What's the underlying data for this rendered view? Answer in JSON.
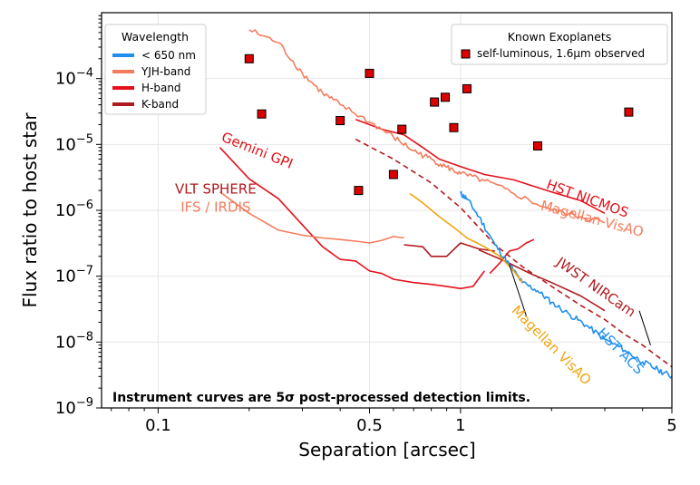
{
  "chart_data": {
    "type": "line",
    "xscale": "log",
    "yscale": "log",
    "xlim": [
      0.065,
      5
    ],
    "ylim": [
      1e-09,
      0.001
    ],
    "xlabel": "Separation [arcsec]",
    "ylabel": "Flux ratio to host star",
    "xticks": [
      {
        "value": 0.1,
        "label": "0.1"
      },
      {
        "value": 0.5,
        "label": "0.5"
      },
      {
        "value": 1,
        "label": "1"
      },
      {
        "value": 5,
        "label": "5"
      }
    ],
    "yticks": [
      {
        "value": 1e-09,
        "base": "10",
        "exp": "−9"
      },
      {
        "value": 1e-08,
        "base": "10",
        "exp": "−8"
      },
      {
        "value": 1e-07,
        "base": "10",
        "exp": "−7"
      },
      {
        "value": 1e-06,
        "base": "10",
        "exp": "−6"
      },
      {
        "value": 1e-05,
        "base": "10",
        "exp": "−5"
      },
      {
        "value": 0.0001,
        "base": "10",
        "exp": "−4"
      }
    ],
    "colors": {
      "blue": "#1e8fef",
      "salmon": "#f47c5c",
      "red": "#e4111b",
      "darkred": "#b0191f",
      "orange": "#f2a30f",
      "marker": "#dd0000"
    },
    "legend_wavelength": {
      "title": "Wavelength",
      "items": [
        {
          "label": "< 650 nm",
          "color": "#1e8fef"
        },
        {
          "label": "YJH-band",
          "color": "#f47c5c"
        },
        {
          "label": "H-band",
          "color": "#e4111b"
        },
        {
          "label": "K-band",
          "color": "#b0191f"
        }
      ]
    },
    "legend_planets": {
      "title": "Known Exoplanets",
      "label": "self-luminous, 1.6μm observed"
    },
    "footnote": "Instrument curves are 5σ post-processed detection limits.",
    "series": [
      {
        "name": "Gemini GPI",
        "color": "#e4111b",
        "dashed": false,
        "noisy": false,
        "x": [
          0.16,
          0.2,
          0.25,
          0.3,
          0.35,
          0.4,
          0.45,
          0.5,
          0.55,
          0.6,
          0.7,
          0.8,
          0.9,
          1.0,
          1.1,
          1.2
        ],
        "y": [
          9e-06,
          3e-06,
          1.5e-06,
          6e-07,
          2.8e-07,
          1.8e-07,
          1.7e-07,
          1.2e-07,
          1.1e-07,
          9e-08,
          8e-08,
          7.5e-08,
          7e-08,
          6.5e-08,
          7e-08,
          1.2e-07
        ]
      },
      {
        "name": "Gemini GPI K",
        "color": "#e4111b",
        "dashed": false,
        "noisy": false,
        "x": [
          1.25,
          1.35,
          1.45,
          1.55,
          1.65,
          1.75
        ],
        "y": [
          1.1e-07,
          1.6e-07,
          2.4e-07,
          2.6e-07,
          3.2e-07,
          3.6e-07
        ]
      },
      {
        "name": "VLT SPHERE IFS",
        "color": "#f47c5c",
        "dashed": false,
        "noisy": false,
        "x": [
          0.16,
          0.2,
          0.25,
          0.3,
          0.35,
          0.4,
          0.45,
          0.5,
          0.55,
          0.6,
          0.65
        ],
        "y": [
          1.9e-06,
          9e-07,
          5e-07,
          4.2e-07,
          3.8e-07,
          3.6e-07,
          3.4e-07,
          3.2e-07,
          3.5e-07,
          4e-07,
          3.8e-07
        ]
      },
      {
        "name": "VLT SPHERE IRDIS",
        "color": "#b0191f",
        "dashed": false,
        "noisy": false,
        "x": [
          0.65,
          0.75,
          0.8,
          0.9,
          1.0,
          1.15,
          1.3
        ],
        "y": [
          3e-07,
          2.8e-07,
          2e-07,
          2e-07,
          3.2e-07,
          2.6e-07,
          2.4e-07
        ]
      },
      {
        "name": "HST NICMOS",
        "color": "#e4111b",
        "dashed": false,
        "noisy": false,
        "x": [
          0.45,
          0.55,
          0.65,
          0.75,
          0.85,
          1.0,
          1.2,
          1.5,
          2.0,
          2.5,
          3.0
        ],
        "y": [
          2.4e-05,
          1.7e-05,
          1.4e-05,
          9e-06,
          6e-06,
          4.6e-06,
          3.5e-06,
          2.9e-06,
          1.9e-06,
          1.4e-06,
          9e-07
        ]
      },
      {
        "name": "Magellan VisAO YJH",
        "color": "#f47c5c",
        "dashed": false,
        "noisy": true,
        "x": [
          0.2,
          0.25,
          0.3,
          0.35,
          0.4,
          0.5,
          0.6,
          0.7,
          0.8,
          0.9,
          1.0,
          1.2,
          1.5,
          2.0,
          2.5,
          3.0
        ],
        "y": [
          0.00055,
          0.00035,
          0.00012,
          6e-05,
          4e-05,
          2.2e-05,
          1.3e-05,
          8e-06,
          6e-06,
          4.5e-06,
          3.6e-06,
          2.8e-06,
          1.8e-06,
          1e-06,
          8e-07,
          6.5e-07
        ]
      },
      {
        "name": "JWST NIRCam K1",
        "color": "#b0191f",
        "dashed": false,
        "noisy": false,
        "x": [
          1.15,
          1.4,
          1.7,
          2.0,
          2.5,
          3.0
        ],
        "y": [
          2.5e-07,
          1.7e-07,
          1.1e-07,
          8e-08,
          5e-08,
          3e-08
        ]
      },
      {
        "name": "JWST NIRCam K2",
        "color": "#b0191f",
        "dashed": true,
        "noisy": false,
        "x": [
          0.45,
          0.6,
          0.8,
          1.0,
          1.3,
          1.6,
          2.0,
          2.5,
          3.0,
          3.5,
          4.0,
          4.5,
          5.0
        ],
        "y": [
          1.2e-05,
          6e-06,
          2.6e-06,
          1.1e-06,
          3e-07,
          1.4e-07,
          7e-08,
          3.6e-08,
          2.2e-08,
          1.3e-08,
          9e-09,
          6e-09,
          4.2e-09
        ]
      },
      {
        "name": "HST ACS",
        "color": "#1e8fef",
        "dashed": false,
        "noisy": true,
        "x": [
          1.0,
          1.05,
          1.15,
          1.3,
          1.45,
          1.6,
          1.8,
          2.0,
          2.3,
          2.6,
          3.0,
          3.5,
          4.0,
          4.5,
          5.0
        ],
        "y": [
          1.8e-06,
          1.5e-06,
          8e-07,
          3e-07,
          1.5e-07,
          8e-08,
          6e-08,
          4e-08,
          2.6e-08,
          1.8e-08,
          1.1e-08,
          7.5e-09,
          5e-09,
          3.8e-09,
          3e-09
        ]
      },
      {
        "name": "Magellan VisAO",
        "color": "#f2a30f",
        "dashed": false,
        "noisy": false,
        "x": [
          0.68,
          0.75,
          0.85,
          0.95,
          1.05,
          1.2,
          1.35,
          1.5,
          1.6
        ],
        "y": [
          1.8e-06,
          1.3e-06,
          8e-07,
          5.5e-07,
          3.8e-07,
          2.8e-07,
          2e-07,
          1.2e-07,
          8e-08
        ]
      }
    ],
    "planets": [
      {
        "x": 0.2,
        "y": 0.0002
      },
      {
        "x": 0.22,
        "y": 2.9e-05
      },
      {
        "x": 0.4,
        "y": 2.3e-05
      },
      {
        "x": 0.5,
        "y": 0.00012
      },
      {
        "x": 0.46,
        "y": 2e-06
      },
      {
        "x": 0.6,
        "y": 3.5e-06
      },
      {
        "x": 0.64,
        "y": 1.7e-05
      },
      {
        "x": 0.82,
        "y": 4.4e-05
      },
      {
        "x": 0.89,
        "y": 5.2e-05
      },
      {
        "x": 0.95,
        "y": 1.8e-05
      },
      {
        "x": 1.05,
        "y": 7e-05
      },
      {
        "x": 1.8,
        "y": 9.5e-06
      },
      {
        "x": 3.6,
        "y": 3.1e-05
      }
    ],
    "annotations": [
      {
        "text": "Gemini GPI",
        "color": "#e4111b",
        "x": 0.21,
        "y": 7e-06,
        "rot": 22
      },
      {
        "text": "VLT SPHERE",
        "color": "#b0191f",
        "x": 0.155,
        "y": 1.8e-06,
        "rot": 0
      },
      {
        "text": "IFS / IRDIS",
        "color": "#f47c5c",
        "x": 0.155,
        "y": 9.5e-07,
        "rot": 0
      },
      {
        "text": "HST NICMOS",
        "color": "#e4111b",
        "x": 2.6,
        "y": 1.3e-06,
        "rot": 20
      },
      {
        "text": "Magellan VisAO",
        "color": "#f47c5c",
        "x": 2.7,
        "y": 6.4e-07,
        "rot": 15
      },
      {
        "text": "JWST NIRCam",
        "color": "#b0191f",
        "x": 2.75,
        "y": 6e-08,
        "rot": 35
      },
      {
        "text": "Magellan VisAO",
        "color": "#f2a30f",
        "x": 1.95,
        "y": 8e-09,
        "rot": 45
      },
      {
        "text": "HST ACS",
        "color": "#1e8fef",
        "x": 3.3,
        "y": 6.5e-09,
        "rot": 45
      }
    ],
    "leaders": [
      {
        "x1": 1.45,
        "y1": 1.5e-07,
        "x2": 1.65,
        "y2": 2.5e-08
      },
      {
        "x1": 3.9,
        "y1": 3e-08,
        "x2": 4.25,
        "y2": 9e-09
      }
    ]
  }
}
